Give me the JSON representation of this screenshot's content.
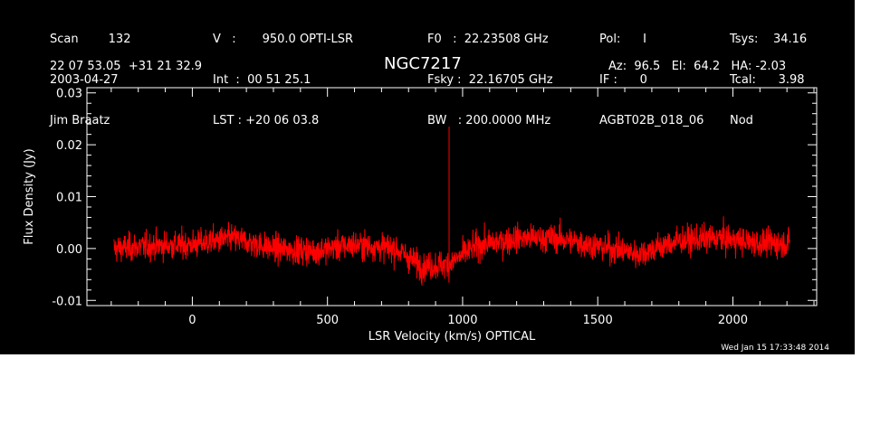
{
  "header": {
    "col1": [
      "Scan        132",
      "2003-04-27",
      "Jim Braatz"
    ],
    "col2": [
      "V   :       950.0 OPTI-LSR",
      "Int  :  00 51 25.1",
      "LST : +20 06 03.8"
    ],
    "col3": [
      "F0   :  22.23508 GHz",
      "Fsky :  22.16705 GHz",
      "BW   : 200.0000 MHz"
    ],
    "col4": [
      "Pol:      I",
      "IF :      0",
      "AGBT02B_018_06"
    ],
    "col5": [
      "Tsys:    34.16",
      "Tcal:      3.98",
      "Nod"
    ],
    "coords": "22 07 53.05  +31 21 32.9",
    "source": "NGC7217",
    "azelha": "Az:  96.5   El:  64.2   HA: -2.03"
  },
  "timestamp": "Wed Jan 15 17:33:48 2014",
  "colors": {
    "background": "#000000",
    "axes": "#ffffff",
    "series": "#ff0000"
  },
  "chart_data": {
    "type": "line",
    "xlabel": "LSR Velocity (km/s) OPTICAL",
    "ylabel": "Flux Density (Jy)",
    "xlim": [
      -390,
      2310
    ],
    "ylim": [
      -0.011,
      0.031
    ],
    "xticks": [
      0,
      500,
      1000,
      1500,
      2000
    ],
    "yticks": [
      -0.01,
      0.0,
      0.01,
      0.02,
      0.03
    ],
    "xtick_labels": [
      "0",
      "500",
      "1000",
      "1500",
      "2000"
    ],
    "ytick_labels": [
      "-0.01",
      "0.00",
      "0.01",
      "0.02",
      "0.03"
    ],
    "grid": false,
    "series": [
      {
        "x_range": [
          -290,
          2210
        ],
        "noise_rms": 0.0019,
        "baseline": [
          [
            -290,
            0.0
          ],
          [
            -150,
            0.0005
          ],
          [
            0,
            0.0008
          ],
          [
            150,
            0.002
          ],
          [
            300,
            0.0
          ],
          [
            450,
            -0.0005
          ],
          [
            600,
            0.0008
          ],
          [
            750,
            0.0
          ],
          [
            850,
            -0.0035
          ],
          [
            950,
            -0.003
          ],
          [
            1050,
            0.0005
          ],
          [
            1200,
            0.002
          ],
          [
            1350,
            0.002
          ],
          [
            1500,
            0.0005
          ],
          [
            1650,
            -0.001
          ],
          [
            1800,
            0.0015
          ],
          [
            1950,
            0.002
          ],
          [
            2100,
            0.001
          ],
          [
            2210,
            0.001
          ]
        ],
        "spike": {
          "x": 950,
          "y": 0.0235
        }
      }
    ]
  }
}
